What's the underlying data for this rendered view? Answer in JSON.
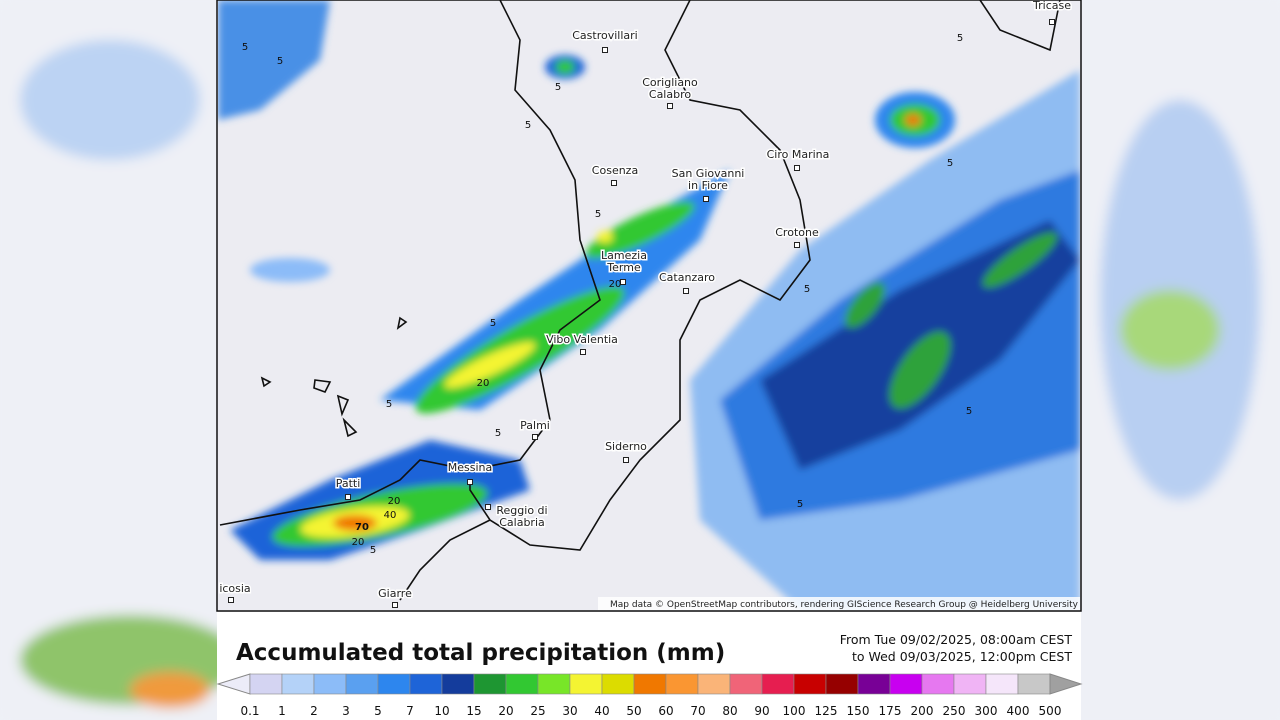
{
  "map": {
    "places": [
      {
        "lines": [
          "Castrovillari"
        ]
      },
      {
        "lines": [
          "Corigliano",
          "Calabro"
        ]
      },
      {
        "lines": [
          "Tricase"
        ]
      },
      {
        "lines": [
          "Ciro Marina"
        ]
      },
      {
        "lines": [
          "Cosenza"
        ]
      },
      {
        "lines": [
          "San Giovanni",
          "in Fiore"
        ]
      },
      {
        "lines": [
          "Crotone"
        ]
      },
      {
        "lines": [
          "Lamezia",
          "Terme"
        ]
      },
      {
        "lines": [
          "Catanzaro"
        ]
      },
      {
        "lines": [
          "Vibo Valentia"
        ]
      },
      {
        "lines": [
          "Palmi"
        ]
      },
      {
        "lines": [
          "Siderno"
        ]
      },
      {
        "lines": [
          "Messina"
        ]
      },
      {
        "lines": [
          "Patti"
        ]
      },
      {
        "lines": [
          "Reggio di",
          "Calabria"
        ]
      },
      {
        "lines": [
          "Giarre"
        ]
      },
      {
        "lines": [
          "icosia"
        ]
      }
    ],
    "contour_labels": [
      "5",
      "5",
      "5",
      "5",
      "5",
      "5",
      "5",
      "5",
      "5",
      "5",
      "5",
      "5",
      "5",
      "5",
      "20",
      "20",
      "20",
      "20",
      "40",
      "70"
    ],
    "attribution": "Map data © OpenStreetMap contributors, rendering GIScience Research Group @ Heidelberg University"
  },
  "legend": {
    "title": "Accumulated total precipitation (mm)",
    "period": [
      "From Tue 09/02/2025, 08:00am CEST",
      "to Wed 09/03/2025, 12:00pm CEST"
    ],
    "ticks": [
      0.1,
      1,
      2,
      3,
      5,
      7,
      10,
      15,
      20,
      25,
      30,
      40,
      50,
      60,
      70,
      80,
      90,
      100,
      125,
      150,
      175,
      200,
      250,
      300,
      400,
      500
    ],
    "colors": [
      "#ececf8",
      "#d4d4f2",
      "#b4d2f8",
      "#8cbcf8",
      "#5aa0f0",
      "#2d86ee",
      "#1e64d8",
      "#143c9c",
      "#1e9632",
      "#32c832",
      "#78e628",
      "#f4f432",
      "#dcdc00",
      "#f07800",
      "#fa9632",
      "#fab478",
      "#f06478",
      "#e61e50",
      "#c80000",
      "#960000",
      "#780096",
      "#c800f0",
      "#e678f0",
      "#f0b4f5",
      "#f5e6fa",
      "#c8c8c8",
      "#a0a0a0"
    ]
  }
}
